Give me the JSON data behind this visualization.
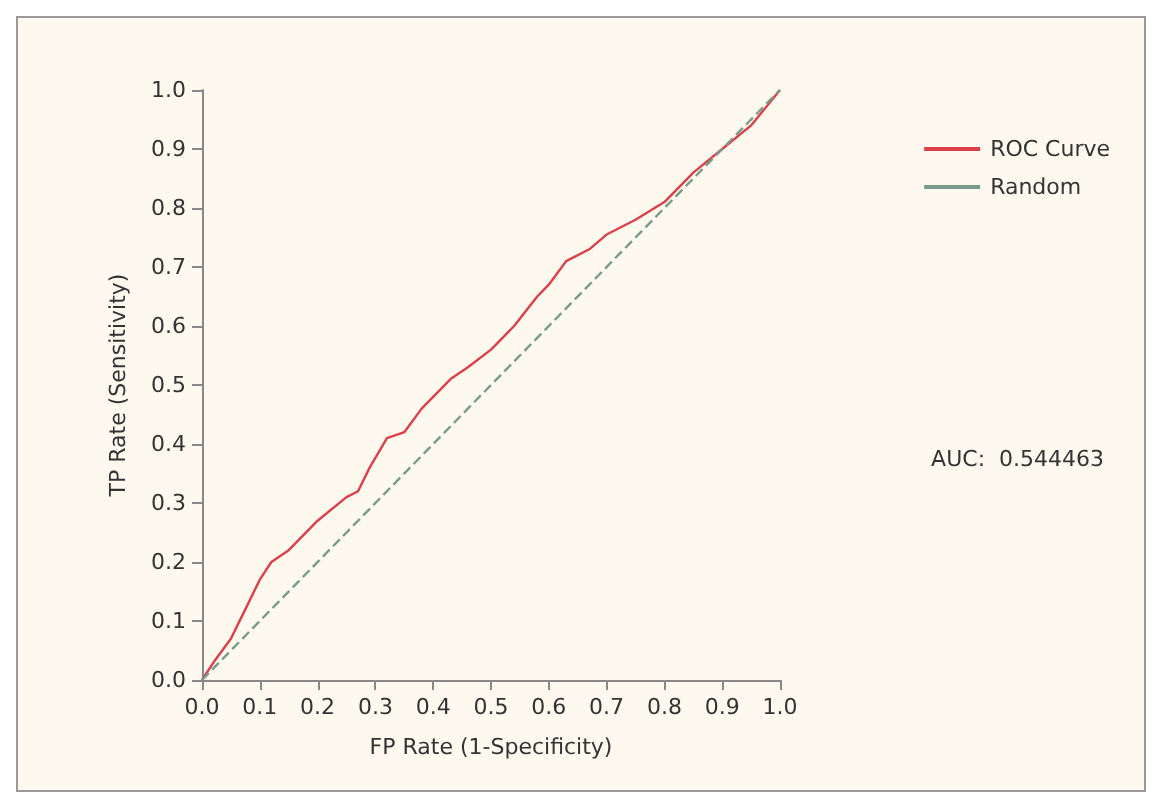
{
  "chart_data": {
    "type": "line",
    "xlabel": "FP Rate (1-Specificity)",
    "ylabel": "TP Rate (Sensitivity)",
    "xlim": [
      0,
      1
    ],
    "ylim": [
      0,
      1
    ],
    "xticks": [
      {
        "value": 0,
        "label": "0.0"
      },
      0.1,
      0.2,
      0.3,
      0.4,
      0.5,
      0.6,
      0.7,
      0.8,
      0.9,
      {
        "value": 1,
        "label": "1.0"
      }
    ],
    "yticks": [
      {
        "value": 0,
        "label": "0.0"
      },
      0.1,
      0.2,
      0.3,
      0.4,
      0.5,
      0.6,
      0.7,
      0.8,
      0.9,
      {
        "value": 1,
        "label": "1.0"
      }
    ],
    "grid": false,
    "legend": "right",
    "marker": "none",
    "annotations": [
      "AUC:  0.544463"
    ],
    "series": [
      {
        "name": "ROC Curve",
        "color": "#d9404a",
        "line_style": "solid",
        "x": [
          0,
          0.02,
          0.05,
          0.07,
          0.1,
          0.12,
          0.15,
          0.2,
          0.25,
          0.27,
          0.29,
          0.32,
          0.35,
          0.38,
          0.4,
          0.43,
          0.46,
          0.5,
          0.54,
          0.58,
          0.6,
          0.63,
          0.67,
          0.7,
          0.75,
          0.8,
          0.85,
          0.9,
          0.95,
          1
        ],
        "values": [
          0,
          0.03,
          0.07,
          0.11,
          0.17,
          0.2,
          0.22,
          0.27,
          0.31,
          0.32,
          0.36,
          0.41,
          0.42,
          0.46,
          0.48,
          0.51,
          0.53,
          0.56,
          0.6,
          0.65,
          0.67,
          0.71,
          0.73,
          0.755,
          0.78,
          0.81,
          0.86,
          0.9,
          0.94,
          1
        ]
      },
      {
        "name": "Random",
        "color": "#7a9a8a",
        "line_style": "dashed",
        "x": [
          0,
          1
        ],
        "values": [
          0,
          1
        ]
      }
    ]
  }
}
